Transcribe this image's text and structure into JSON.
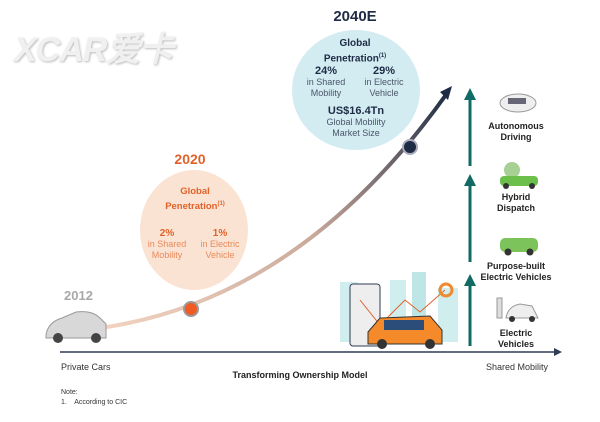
{
  "watermark": "XCAR爱卡",
  "milestones": {
    "y2012": {
      "year": "2012"
    },
    "y2020": {
      "year": "2020",
      "title": "Global",
      "title2": "Penetration",
      "footnote_mark": "(1)",
      "stats": [
        {
          "value": "2%",
          "l1": "in Shared",
          "l2": "Mobility"
        },
        {
          "value": "1%",
          "l1": "in Electric",
          "l2": "Vehicle"
        }
      ]
    },
    "y2040": {
      "year": "2040E",
      "title": "Global",
      "title2": "Penetration",
      "footnote_mark": "(1)",
      "stats": [
        {
          "value": "24%",
          "l1": "in Shared",
          "l2": "Mobility"
        },
        {
          "value": "29%",
          "l1": "in Electric",
          "l2": "Vehicle"
        }
      ],
      "market_value": "US$16.4Tn",
      "market_l1": "Global Mobility",
      "market_l2": "Market Size"
    }
  },
  "stages": [
    {
      "l1": "Autonomous",
      "l2": "Driving"
    },
    {
      "l1": "Hybrid",
      "l2": "Dispatch"
    },
    {
      "l1": "Purpose-built",
      "l2": "Electric Vehicles"
    },
    {
      "l1": "Electric",
      "l2": "Vehicles"
    }
  ],
  "axis": {
    "left": "Private Cars",
    "right": "Shared Mobility",
    "title": "Transforming Ownership Model"
  },
  "note": {
    "title": "Note:",
    "items": [
      "1.    According to CIC"
    ]
  },
  "colors": {
    "navy": "#1d2b45",
    "orange": "#e0622a",
    "teal": "#0f6b63",
    "blue_circle": "#d3ecf2",
    "orange_circle": "#fbe3d3"
  }
}
